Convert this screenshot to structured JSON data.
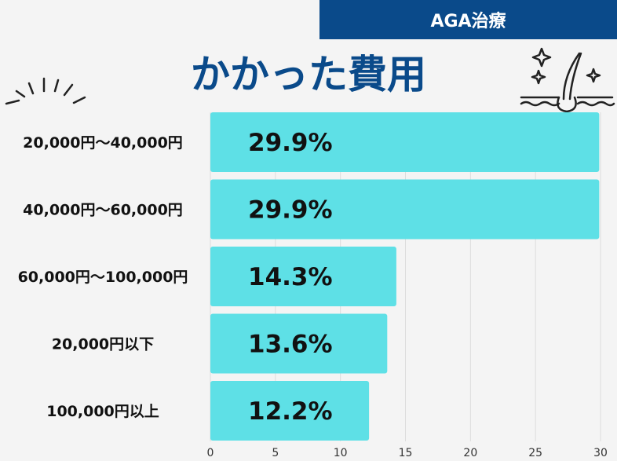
{
  "header": {
    "tag": "AGA治療",
    "title": "かかった費用"
  },
  "icons": {
    "left": "burst-lines-icon",
    "right": "hair-follicle-sparkle-icon"
  },
  "colors": {
    "bar": "#5ee0e6",
    "accent": "#0a4a8a"
  },
  "chart_data": {
    "type": "bar",
    "orientation": "horizontal",
    "categories": [
      "20,000円〜40,000円",
      "40,000円〜60,000円",
      "60,000円〜100,000円",
      "20,000円以下",
      "100,000円以上"
    ],
    "values": [
      29.9,
      29.9,
      14.3,
      13.6,
      12.2
    ],
    "data_labels": [
      "29.9%",
      "29.9%",
      "14.3%",
      "13.6%",
      "12.2%"
    ],
    "xlim": [
      0,
      30
    ],
    "xticks": [
      0,
      5,
      10,
      15,
      20,
      25,
      30
    ],
    "grid": true,
    "legend": "none"
  }
}
